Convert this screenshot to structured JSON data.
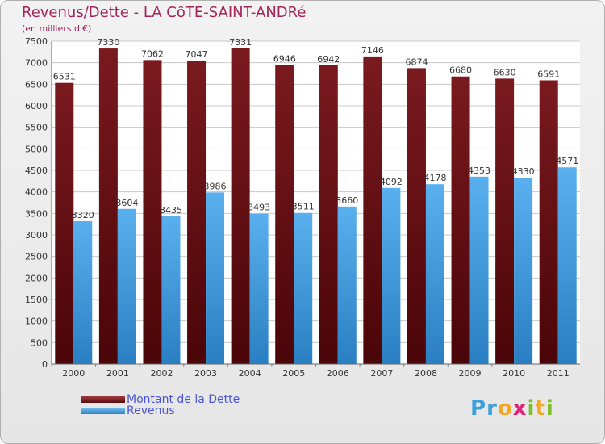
{
  "chart_data": {
    "type": "bar",
    "title": "Revenus/Dette - LA CôTE-SAINT-ANDRé",
    "subtitle": "(en milliers d'€)",
    "categories": [
      "2000",
      "2001",
      "2002",
      "2003",
      "2004",
      "2005",
      "2006",
      "2007",
      "2008",
      "2009",
      "2010",
      "2011"
    ],
    "series": [
      {
        "name": "Montant de la Dette",
        "color": "#6b0f14",
        "values": [
          6531,
          7330,
          7062,
          7047,
          7331,
          6946,
          6942,
          7146,
          6874,
          6680,
          6630,
          6591
        ]
      },
      {
        "name": "Revenus",
        "color": "#3b9be3",
        "values": [
          3320,
          3604,
          3435,
          3986,
          3493,
          3511,
          3660,
          4092,
          4178,
          4353,
          4330,
          4571
        ]
      }
    ],
    "ylim": [
      0,
      7500
    ],
    "yticks": [
      0,
      500,
      1000,
      1500,
      2000,
      2500,
      3000,
      3500,
      4000,
      4500,
      5000,
      5500,
      6000,
      6500,
      7000,
      7500
    ],
    "grid": true,
    "legend_position": "bottom-left"
  },
  "logo": {
    "letters": [
      "P",
      "r",
      "o",
      "x",
      "i",
      "t",
      "i"
    ],
    "colors": [
      "#3da0dc",
      "#3da0dc",
      "#f5a623",
      "#e2237a",
      "#7bbf2a",
      "#f5a623",
      "#7bbf2a"
    ]
  }
}
